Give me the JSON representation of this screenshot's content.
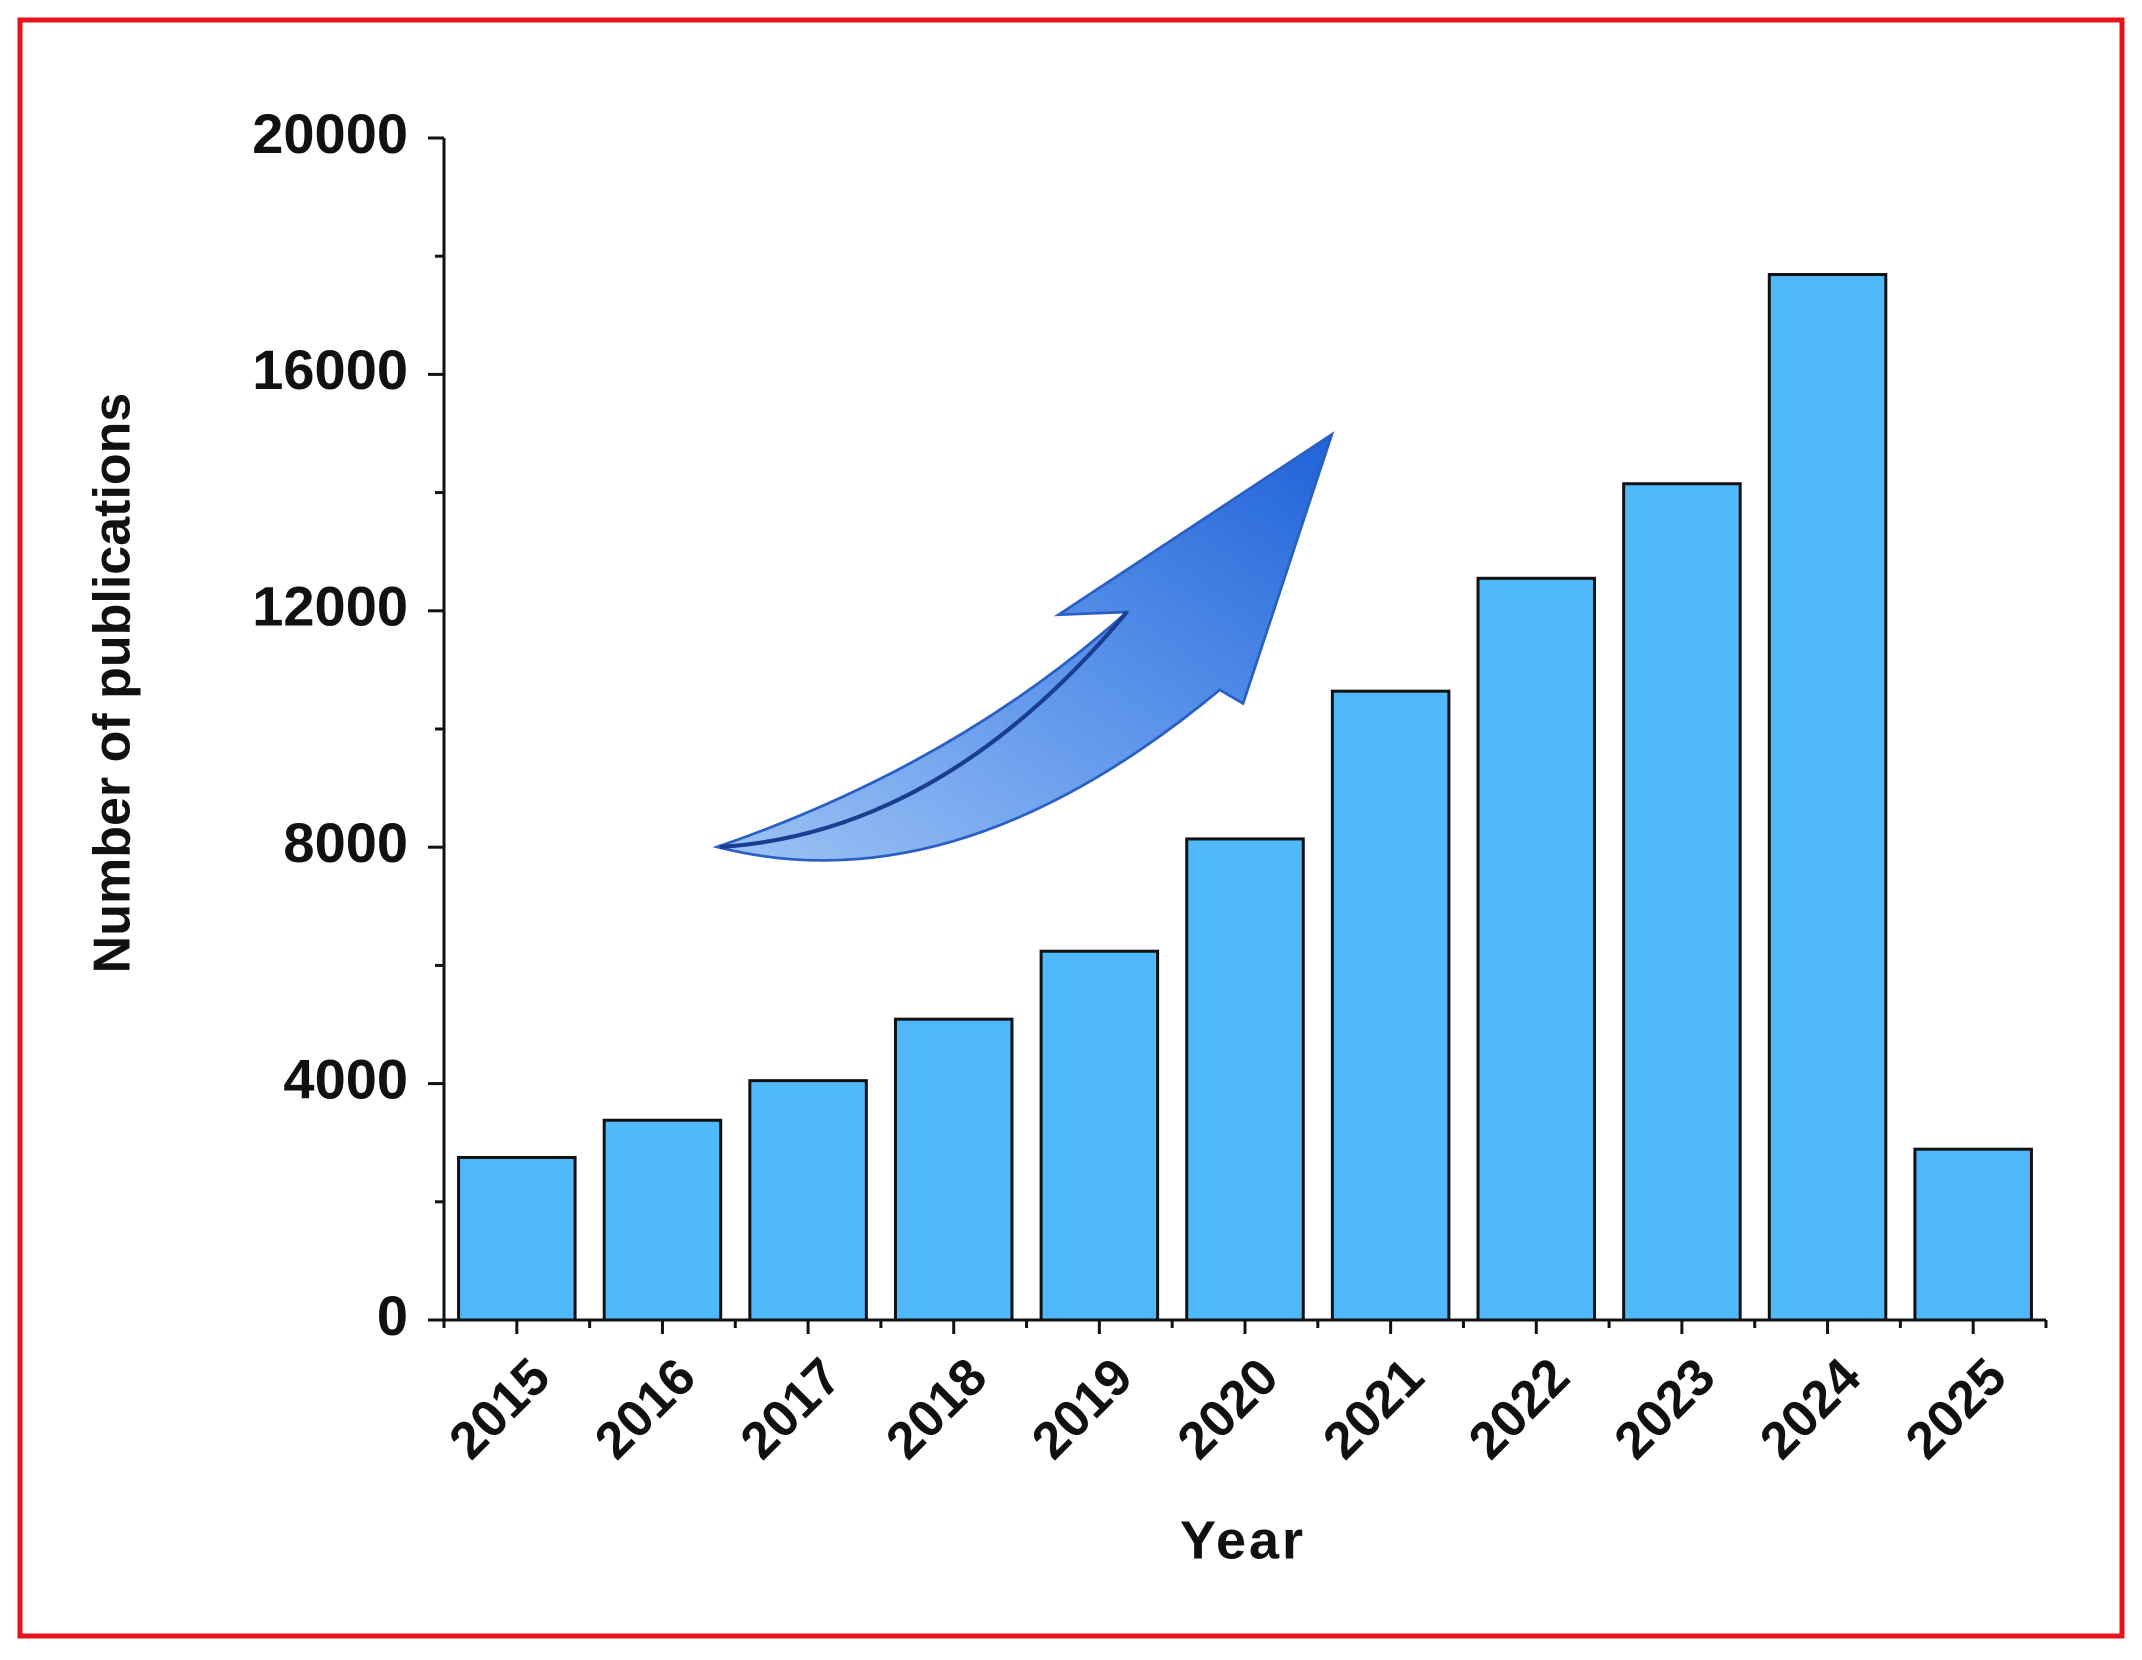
{
  "chart_data": {
    "type": "bar",
    "x_label": "Year",
    "y_label": "Number of publications",
    "categories": [
      "2015",
      "2016",
      "2017",
      "2018",
      "2019",
      "2020",
      "2021",
      "2022",
      "2023",
      "2024",
      "2025"
    ],
    "values": [
      2750,
      3380,
      4050,
      5090,
      6240,
      8140,
      10640,
      12550,
      14150,
      17690,
      2890
    ],
    "color": "#4fb9fb",
    "ylim": [
      0,
      20000
    ],
    "yticks": [
      0,
      4000,
      8000,
      12000,
      16000,
      20000
    ]
  }
}
